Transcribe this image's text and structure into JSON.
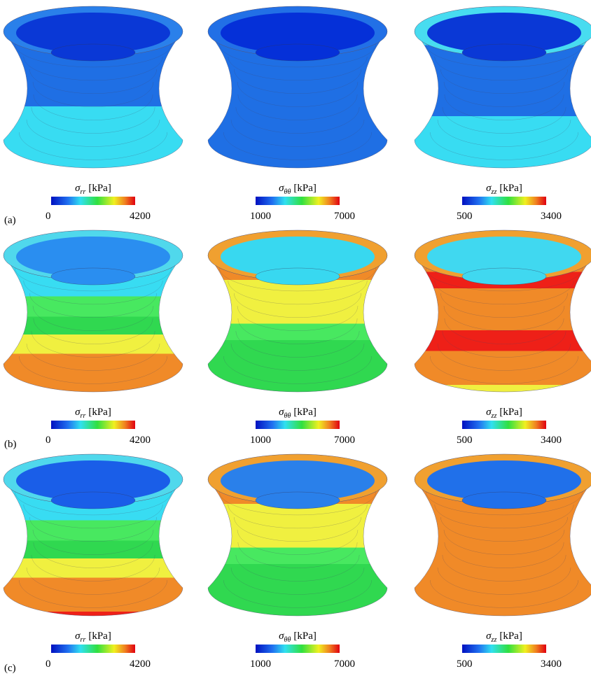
{
  "figure": {
    "rows": [
      {
        "label": "(a)",
        "panels": [
          {
            "symbol": "σ",
            "subscript": "rr",
            "unit": "[kPa]",
            "min": "0",
            "max": "4200"
          },
          {
            "symbol": "σ",
            "subscript": "θθ",
            "unit": "[kPa]",
            "min": "1000",
            "max": "7000"
          },
          {
            "symbol": "σ",
            "subscript": "zz",
            "unit": "[kPa]",
            "min": "500",
            "max": "3400"
          }
        ]
      },
      {
        "label": "(b)",
        "panels": [
          {
            "symbol": "σ",
            "subscript": "rr",
            "unit": "[kPa]",
            "min": "0",
            "max": "4200"
          },
          {
            "symbol": "σ",
            "subscript": "θθ",
            "unit": "[kPa]",
            "min": "1000",
            "max": "7000"
          },
          {
            "symbol": "σ",
            "subscript": "zz",
            "unit": "[kPa]",
            "min": "500",
            "max": "3400"
          }
        ]
      },
      {
        "label": "(c)",
        "panels": [
          {
            "symbol": "σ",
            "subscript": "rr",
            "unit": "[kPa]",
            "min": "0",
            "max": "4200"
          },
          {
            "symbol": "σ",
            "subscript": "θθ",
            "unit": "[kPa]",
            "min": "1000",
            "max": "7000"
          },
          {
            "symbol": "σ",
            "subscript": "zz",
            "unit": "[kPa]",
            "min": "500",
            "max": "3400"
          }
        ]
      }
    ]
  }
}
